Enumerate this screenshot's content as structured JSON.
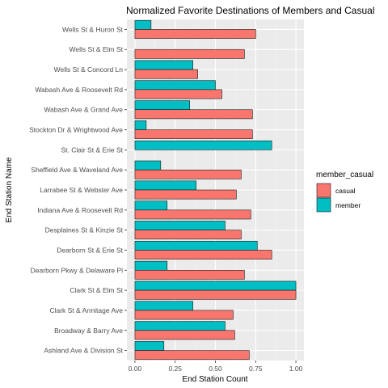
{
  "chart_data": {
    "type": "bar",
    "orientation": "horizontal",
    "title": "Normalized Favorite Destinations of Members and Casual",
    "xlabel": "End Station Count",
    "ylabel": "End Station Name",
    "xlim": [
      0,
      1
    ],
    "x_ticks": [
      "0.00",
      "0.25",
      "0.50",
      "0.75",
      "1.00"
    ],
    "grid": true,
    "legend": {
      "title": "member_casual",
      "placement": "right"
    },
    "categories": [
      "Wells St & Huron St",
      "Wells St & Elm St",
      "Wells St & Concord Ln",
      "Wabash Ave & Roosevelt Rd",
      "Wabash Ave & Grand Ave",
      "Stockton Dr & Wrightwood Ave",
      "St. Clair St & Erie St",
      "Sheffield Ave & Waveland Ave",
      "Larrabee St & Webster Ave",
      "Indiana Ave & Roosevelt Rd",
      "Desplaines St & Kinzie St",
      "Dearborn St & Erie St",
      "Dearborn Pkwy & Delaware Pl",
      "Clark St & Elm St",
      "Clark St & Armitage Ave",
      "Broadway & Barry Ave",
      "Ashland Ave & Division St"
    ],
    "series": [
      {
        "name": "casual",
        "color": "#F8766D",
        "values": [
          0.75,
          0.68,
          0.39,
          0.54,
          0.73,
          0.73,
          0.0,
          0.66,
          0.63,
          0.72,
          0.66,
          0.85,
          0.68,
          1.0,
          0.61,
          0.62,
          0.71
        ]
      },
      {
        "name": "member",
        "color": "#00BFC4",
        "values": [
          0.1,
          0.0,
          0.36,
          0.5,
          0.34,
          0.07,
          0.85,
          0.16,
          0.38,
          0.2,
          0.56,
          0.76,
          0.2,
          1.0,
          0.36,
          0.56,
          0.18
        ]
      }
    ]
  }
}
